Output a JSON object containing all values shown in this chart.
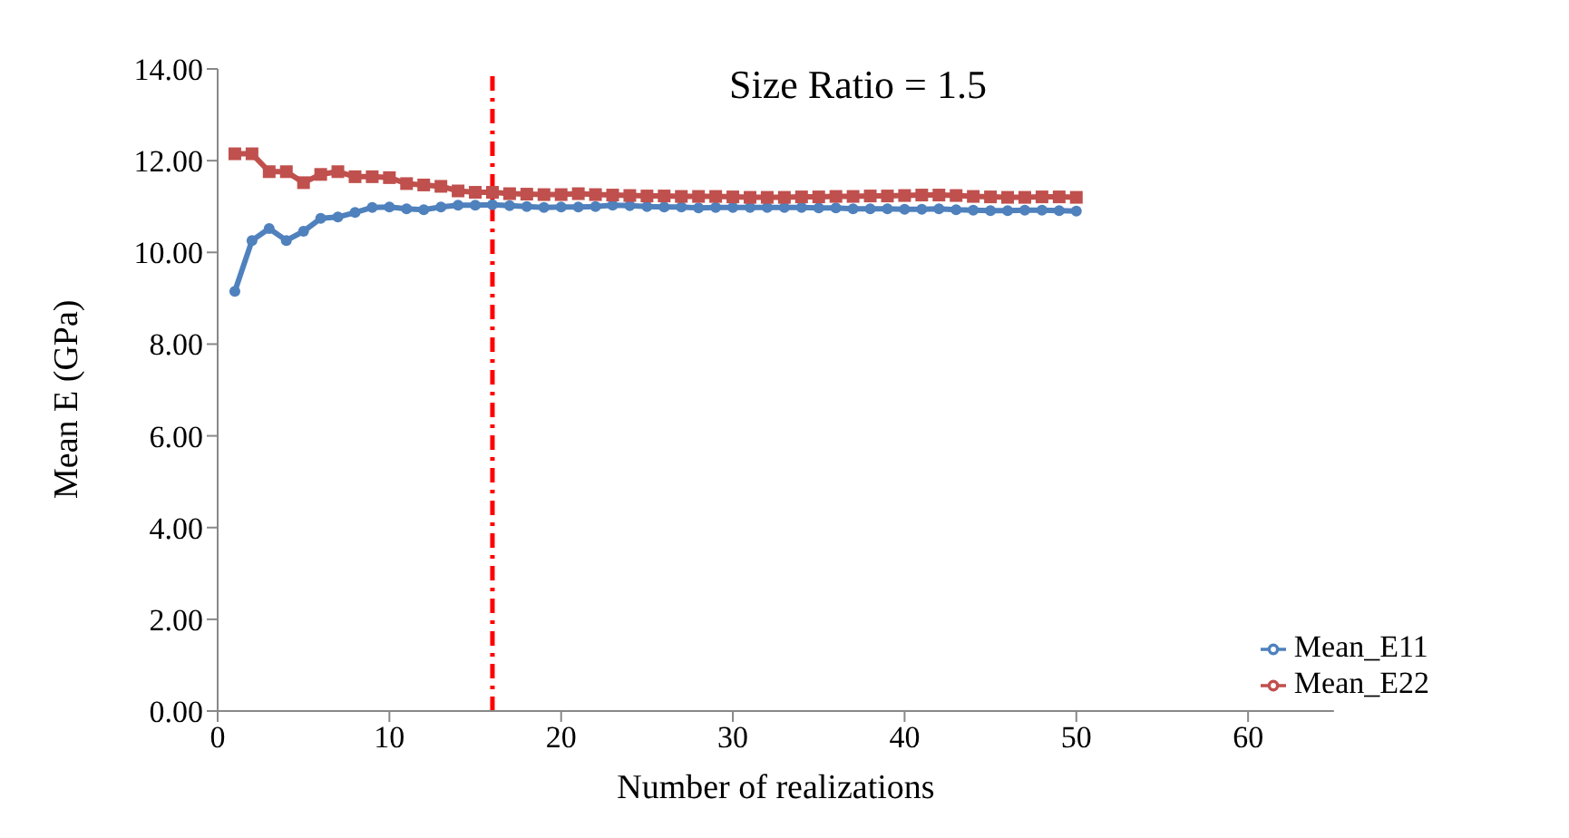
{
  "chart_data": {
    "type": "line",
    "title": "Size Ratio = 1.5",
    "xlabel": "Number of realizations",
    "ylabel": "Mean E (GPa)",
    "x": [
      1,
      2,
      3,
      4,
      5,
      6,
      7,
      8,
      9,
      10,
      11,
      12,
      13,
      14,
      15,
      16,
      17,
      18,
      19,
      20,
      21,
      22,
      23,
      24,
      25,
      26,
      27,
      28,
      29,
      30,
      31,
      32,
      33,
      34,
      35,
      36,
      37,
      38,
      39,
      40,
      41,
      42,
      43,
      44,
      45,
      46,
      47,
      48,
      49,
      50
    ],
    "series": [
      {
        "name": "Mean_E11",
        "color": "#4f81bd",
        "marker": "circle",
        "values": [
          9.15,
          10.26,
          10.52,
          10.26,
          10.46,
          10.74,
          10.77,
          10.87,
          10.98,
          10.99,
          10.95,
          10.93,
          10.99,
          11.03,
          11.03,
          11.04,
          11.02,
          11.0,
          10.98,
          10.99,
          10.99,
          11.0,
          11.03,
          11.02,
          11.0,
          10.99,
          10.99,
          10.97,
          10.98,
          10.98,
          10.98,
          10.98,
          10.98,
          10.98,
          10.97,
          10.97,
          10.95,
          10.95,
          10.95,
          10.94,
          10.94,
          10.95,
          10.93,
          10.92,
          10.91,
          10.91,
          10.92,
          10.92,
          10.91,
          10.9
        ]
      },
      {
        "name": "Mean_E22",
        "color": "#c0504d",
        "marker": "square",
        "values": [
          12.15,
          12.15,
          11.76,
          11.76,
          11.52,
          11.7,
          11.76,
          11.65,
          11.65,
          11.63,
          11.5,
          11.47,
          11.44,
          11.34,
          11.31,
          11.31,
          11.28,
          11.27,
          11.26,
          11.26,
          11.28,
          11.26,
          11.25,
          11.24,
          11.23,
          11.23,
          11.22,
          11.22,
          11.22,
          11.21,
          11.2,
          11.2,
          11.2,
          11.21,
          11.21,
          11.22,
          11.22,
          11.23,
          11.23,
          11.24,
          11.25,
          11.25,
          11.24,
          11.22,
          11.21,
          11.2,
          11.2,
          11.21,
          11.21,
          11.2
        ]
      }
    ],
    "xlim": [
      0,
      65
    ],
    "xticks": [
      0,
      10,
      20,
      30,
      40,
      50,
      60
    ],
    "ylim": [
      0,
      14
    ],
    "yticks": [
      {
        "value": 0,
        "label": "0.00"
      },
      {
        "value": 2,
        "label": "2.00"
      },
      {
        "value": 4,
        "label": "4.00"
      },
      {
        "value": 6,
        "label": "6.00"
      },
      {
        "value": 8,
        "label": "8.00"
      },
      {
        "value": 10,
        "label": "10.00"
      },
      {
        "value": 12,
        "label": "12.00"
      },
      {
        "value": 14,
        "label": "14.00"
      }
    ],
    "ref_lines": [
      {
        "axis": "x",
        "value": 16,
        "color": "#ff0000",
        "line_style": "dashdot"
      }
    ],
    "grid": false,
    "legend": "bottom right",
    "line_style": "solid"
  }
}
